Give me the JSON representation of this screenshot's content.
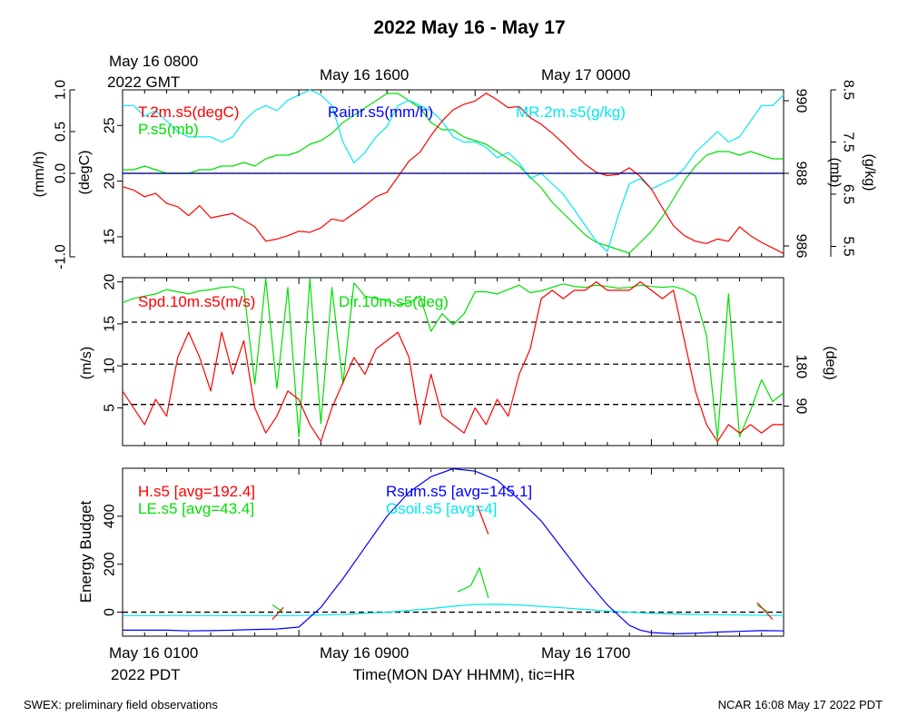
{
  "title": "2022 May 16 - May 17",
  "top_time": {
    "start_line1": "May 16 0800",
    "start_line2": "2022 GMT",
    "mid1": "May 16 1600",
    "mid2": "May 17 0000"
  },
  "bottom_time": {
    "start_line1": "May 16 0100",
    "start_line2": "2022 PDT",
    "mid1": "May 16 0900",
    "mid2": "May 16 1700",
    "xlabel": "Time(MON DAY HHMM), tic=HR"
  },
  "footer": {
    "left": "SWEX: preliminary field observations",
    "right": "NCAR 16:08 May 17 2022 PDT"
  },
  "colors": {
    "red": "#ff0000",
    "green": "#00e000",
    "blue": "#0000ff",
    "cyan": "#00e8f0",
    "black": "#000000"
  },
  "chart_data": [
    {
      "type": "line",
      "x_unit": "hours since May 16 0100 PDT",
      "xlim": [
        0,
        30
      ],
      "axes": {
        "rain": {
          "label": "(mm/h)",
          "ticks": [
            "-1.0",
            "0.0",
            "0.5",
            "1.0"
          ],
          "tick_values": [
            -1,
            0,
            0.5,
            1
          ],
          "lim": [
            -1,
            1
          ]
        },
        "temp": {
          "label": "(degC)",
          "ticks": [
            "15",
            "20",
            "25"
          ],
          "tick_values": [
            15,
            20,
            25
          ],
          "lim": [
            13.2,
            28.2
          ]
        },
        "pres": {
          "label": "(mb)",
          "ticks": [
            "986",
            "988",
            "990"
          ],
          "tick_values": [
            986,
            988,
            990
          ],
          "lim": [
            985.7,
            990.3
          ]
        },
        "mr": {
          "label": "(g/kg)",
          "ticks": [
            "5.5",
            "6.5",
            "7.5",
            "8.5"
          ],
          "tick_values": [
            5.5,
            6.5,
            7.5,
            8.5
          ],
          "lim": [
            5.3,
            8.5
          ]
        }
      },
      "series": [
        {
          "name": "T.2m.s5(degC)",
          "color": "red",
          "axis": "temp",
          "x": [
            0,
            0.5,
            1,
            1.5,
            2,
            2.5,
            3,
            3.5,
            4,
            4.5,
            5,
            5.5,
            6,
            6.5,
            7,
            7.5,
            8,
            8.5,
            9,
            9.5,
            10,
            10.5,
            11,
            11.5,
            12,
            12.5,
            13,
            13.5,
            14,
            14.5,
            15,
            15.5,
            16,
            16.5,
            17,
            17.5,
            18,
            18.5,
            19,
            19.5,
            20,
            20.5,
            21,
            21.5,
            22,
            22.5,
            23,
            23.5,
            24,
            24.5,
            25,
            25.5,
            26,
            26.5,
            27,
            27.5,
            28,
            28.5,
            29,
            29.5,
            30
          ],
          "y": [
            19.5,
            19.2,
            18.6,
            18.9,
            18.0,
            17.7,
            16.9,
            17.8,
            16.7,
            16.9,
            17.1,
            16.5,
            15.9,
            14.6,
            14.8,
            15.1,
            15.5,
            15.4,
            15.8,
            16.6,
            16.4,
            17.1,
            17.8,
            18.6,
            19.0,
            20.4,
            21.8,
            22.6,
            24.1,
            25.4,
            26.4,
            26.9,
            27.2,
            27.9,
            27.3,
            26.6,
            26.7,
            25.7,
            25.1,
            24.3,
            23.4,
            22.4,
            21.5,
            20.8,
            20.5,
            20.6,
            21.2,
            20.4,
            19.3,
            17.6,
            16.0,
            15.1,
            14.6,
            14.4,
            14.8,
            14.6,
            15.9,
            15.1,
            14.5,
            14.0,
            13.5
          ]
        },
        {
          "name": "P.s5(mb)",
          "color": "green",
          "axis": "pres",
          "x": [
            0,
            0.5,
            1,
            1.5,
            2,
            2.5,
            3,
            3.5,
            4,
            4.5,
            5,
            5.5,
            6,
            6.5,
            7,
            7.5,
            8,
            8.5,
            9,
            9.5,
            10,
            10.5,
            11,
            11.5,
            12,
            12.5,
            13,
            13.5,
            14,
            14.5,
            15,
            15.5,
            16,
            16.5,
            17,
            17.5,
            18,
            18.5,
            19,
            19.5,
            20,
            20.5,
            21,
            21.5,
            22,
            22.5,
            23,
            23.5,
            24,
            24.5,
            25,
            25.5,
            26,
            26.5,
            27,
            27.5,
            28,
            28.5,
            29,
            29.5,
            30
          ],
          "y": [
            988.1,
            988.1,
            988.2,
            988.1,
            988.0,
            988.0,
            988.0,
            988.1,
            988.1,
            988.2,
            988.2,
            988.3,
            988.2,
            988.4,
            988.5,
            988.5,
            988.6,
            988.8,
            988.9,
            989.1,
            989.4,
            989.6,
            989.8,
            990.0,
            990.2,
            990.2,
            990.0,
            989.8,
            989.4,
            989.2,
            989.2,
            989.0,
            988.9,
            988.8,
            988.6,
            988.4,
            988.2,
            987.9,
            987.6,
            987.2,
            986.9,
            986.6,
            986.3,
            986.1,
            986.0,
            985.9,
            985.8,
            986.1,
            986.4,
            986.8,
            987.3,
            987.8,
            988.2,
            988.5,
            988.6,
            988.6,
            988.5,
            988.6,
            988.5,
            988.4,
            988.4
          ]
        },
        {
          "name": "MR.2m.s5(g/kg)",
          "color": "cyan",
          "axis": "mr",
          "x": [
            0,
            0.5,
            1,
            1.5,
            2,
            2.5,
            3,
            3.5,
            4,
            4.5,
            5,
            5.5,
            6,
            6.5,
            7,
            7.5,
            8,
            8.5,
            9,
            9.5,
            10,
            10.5,
            11,
            11.5,
            12,
            12.5,
            13,
            13.5,
            14,
            14.5,
            15,
            15.5,
            16,
            16.5,
            17,
            17.5,
            18,
            18.5,
            19,
            19.5,
            20,
            20.5,
            21,
            21.5,
            22,
            22.5,
            23,
            23.5,
            24,
            24.5,
            25,
            25.5,
            26,
            26.5,
            27,
            27.5,
            28,
            28.5,
            29,
            29.5,
            30
          ],
          "y": [
            8.2,
            8.2,
            8.0,
            8.1,
            7.9,
            7.7,
            7.6,
            7.6,
            7.6,
            7.5,
            7.6,
            7.9,
            8.1,
            8.2,
            8.1,
            8.3,
            8.4,
            8.5,
            8.4,
            8.2,
            7.5,
            7.1,
            7.3,
            7.6,
            7.8,
            8.2,
            8.3,
            8.2,
            8.1,
            7.9,
            7.6,
            7.5,
            7.5,
            7.4,
            7.2,
            7.3,
            7.1,
            6.8,
            6.9,
            6.7,
            6.5,
            6.2,
            5.9,
            5.6,
            5.4,
            6.1,
            6.7,
            6.8,
            6.6,
            6.7,
            6.8,
            7.0,
            7.3,
            7.5,
            7.7,
            7.5,
            7.6,
            7.9,
            8.2,
            8.2,
            8.4
          ]
        },
        {
          "name": "Rainr.s5(mm/h)",
          "color": "blue",
          "axis": "rain",
          "x": [
            0,
            30
          ],
          "y": [
            0,
            0
          ]
        }
      ]
    },
    {
      "type": "line",
      "x_unit": "hours since May 16 0100 PDT",
      "xlim": [
        0,
        30
      ],
      "axes": {
        "spd": {
          "label": "(m/s)",
          "ticks": [
            "5",
            "10",
            "15",
            "20"
          ],
          "tick_values": [
            5,
            10,
            15,
            20
          ],
          "lim": [
            0.5,
            20.5
          ]
        },
        "dir": {
          "label": "(deg)",
          "ticks": [
            "90",
            "180"
          ],
          "tick_values": [
            90,
            180
          ],
          "lim": [
            0,
            382
          ]
        }
      },
      "ref_lines_ms": [
        5.4,
        10.2,
        15.2
      ],
      "series": [
        {
          "name": "Spd.10m.s5(m/s)",
          "color": "red",
          "axis": "spd",
          "x": [
            0,
            0.5,
            1,
            1.5,
            2,
            2.5,
            3,
            3.5,
            4,
            4.5,
            5,
            5.5,
            6,
            6.5,
            7,
            7.5,
            8,
            8.5,
            9,
            9.5,
            10,
            10.5,
            11,
            11.5,
            12,
            12.5,
            13,
            13.5,
            14,
            14.5,
            15,
            15.5,
            16,
            16.5,
            17,
            17.5,
            18,
            18.5,
            19,
            19.5,
            20,
            20.5,
            21,
            21.5,
            22,
            22.5,
            23,
            23.5,
            24,
            24.5,
            25,
            25.5,
            26,
            26.5,
            27,
            27.5,
            28,
            28.5,
            29,
            29.5,
            30
          ],
          "y": [
            7,
            5,
            3,
            6,
            4,
            11,
            14,
            11,
            7,
            14,
            9,
            13,
            5,
            2,
            4,
            7,
            6,
            3,
            1,
            5,
            8,
            11,
            9,
            12,
            13,
            14,
            11,
            3,
            9,
            4,
            3,
            2,
            5,
            3,
            6,
            4,
            9,
            12,
            18,
            19,
            18,
            19,
            19,
            20,
            19,
            19,
            19,
            20,
            19,
            18,
            19,
            13,
            7,
            3,
            1,
            3,
            2,
            3,
            2,
            3,
            3
          ]
        },
        {
          "name": "Dir.10m.s5(deg)",
          "color": "green",
          "axis": "dir",
          "x": [
            0,
            0.5,
            1,
            1.5,
            2,
            2.5,
            3,
            3.5,
            4,
            4.5,
            5,
            5.5,
            6,
            6.5,
            7,
            7.5,
            8,
            8.5,
            9,
            9.5,
            10,
            10.5,
            11,
            11.5,
            12,
            12.5,
            13,
            13.5,
            14,
            14.5,
            15,
            15.5,
            16,
            16.5,
            17,
            17.5,
            18,
            18.5,
            19,
            19.5,
            20,
            20.5,
            21,
            21.5,
            22,
            22.5,
            23,
            23.5,
            24,
            24.5,
            25,
            25.5,
            26,
            26.5,
            27,
            27.5,
            28,
            28.5,
            29,
            29.5,
            30
          ],
          "y": [
            325,
            335,
            340,
            345,
            355,
            350,
            345,
            352,
            355,
            360,
            362,
            355,
            140,
            380,
            130,
            360,
            20,
            380,
            50,
            360,
            140,
            370,
            340,
            335,
            330,
            320,
            325,
            340,
            260,
            300,
            275,
            300,
            350,
            350,
            345,
            355,
            365,
            348,
            352,
            360,
            368,
            362,
            360,
            365,
            362,
            358,
            360,
            365,
            362,
            360,
            362,
            355,
            340,
            250,
            15,
            345,
            20,
            80,
            150,
            100,
            120
          ]
        }
      ]
    },
    {
      "type": "line",
      "x_unit": "hours since May 16 0100 PDT",
      "xlim": [
        0,
        30
      ],
      "ylabel": "Energy Budget",
      "ylim": [
        -100,
        600
      ],
      "ticks": [
        "0",
        "200",
        "400"
      ],
      "tick_values": [
        0,
        200,
        400
      ],
      "series": [
        {
          "name": "H.s5 [avg=192.4]",
          "color": "red",
          "segments": [
            {
              "x": [
                6.8,
                7.3
              ],
              "y": [
                -30,
                20
              ]
            },
            {
              "x": [
                16.1,
                16.6
              ],
              "y": [
                445,
                325
              ]
            },
            {
              "x": [
                28.8,
                29.5
              ],
              "y": [
                40,
                -30
              ]
            }
          ]
        },
        {
          "name": "LE.s5 [avg=43.4]",
          "color": "green",
          "segments": [
            {
              "x": [
                6.8,
                7.3
              ],
              "y": [
                30,
                0
              ]
            },
            {
              "x": [
                15.2,
                15.8,
                16.2,
                16.6
              ],
              "y": [
                85,
                110,
                185,
                60
              ]
            },
            {
              "x": [
                28.8,
                29.3
              ],
              "y": [
                30,
                0
              ]
            }
          ]
        },
        {
          "name": "Rsum.s5 [avg=145.1]",
          "color": "blue",
          "x": [
            0,
            1,
            2,
            3,
            4,
            5,
            6,
            7,
            8,
            9,
            9.5,
            10,
            11,
            12,
            13,
            14,
            15,
            16,
            17,
            18,
            19,
            20,
            21,
            22,
            23,
            23.5,
            24,
            25,
            26,
            27,
            28,
            29,
            30
          ],
          "y": [
            -75,
            -75,
            -75,
            -78,
            -77,
            -75,
            -72,
            -70,
            -62,
            20,
            80,
            140,
            270,
            400,
            500,
            565,
            598,
            588,
            550,
            470,
            380,
            260,
            140,
            30,
            -55,
            -75,
            -85,
            -90,
            -88,
            -83,
            -80,
            -77,
            -78
          ]
        },
        {
          "name": "Gsoil.s5 [avg=4]",
          "color": "cyan",
          "x": [
            0,
            2,
            4,
            6,
            8,
            10,
            12,
            14,
            15,
            16,
            17,
            18,
            20,
            22,
            24,
            26,
            28,
            30
          ],
          "y": [
            -14,
            -14,
            -14,
            -14,
            -14,
            -10,
            0,
            15,
            25,
            32,
            33,
            30,
            18,
            5,
            -5,
            -10,
            -12,
            -14
          ]
        }
      ],
      "ref_line": 0
    }
  ]
}
